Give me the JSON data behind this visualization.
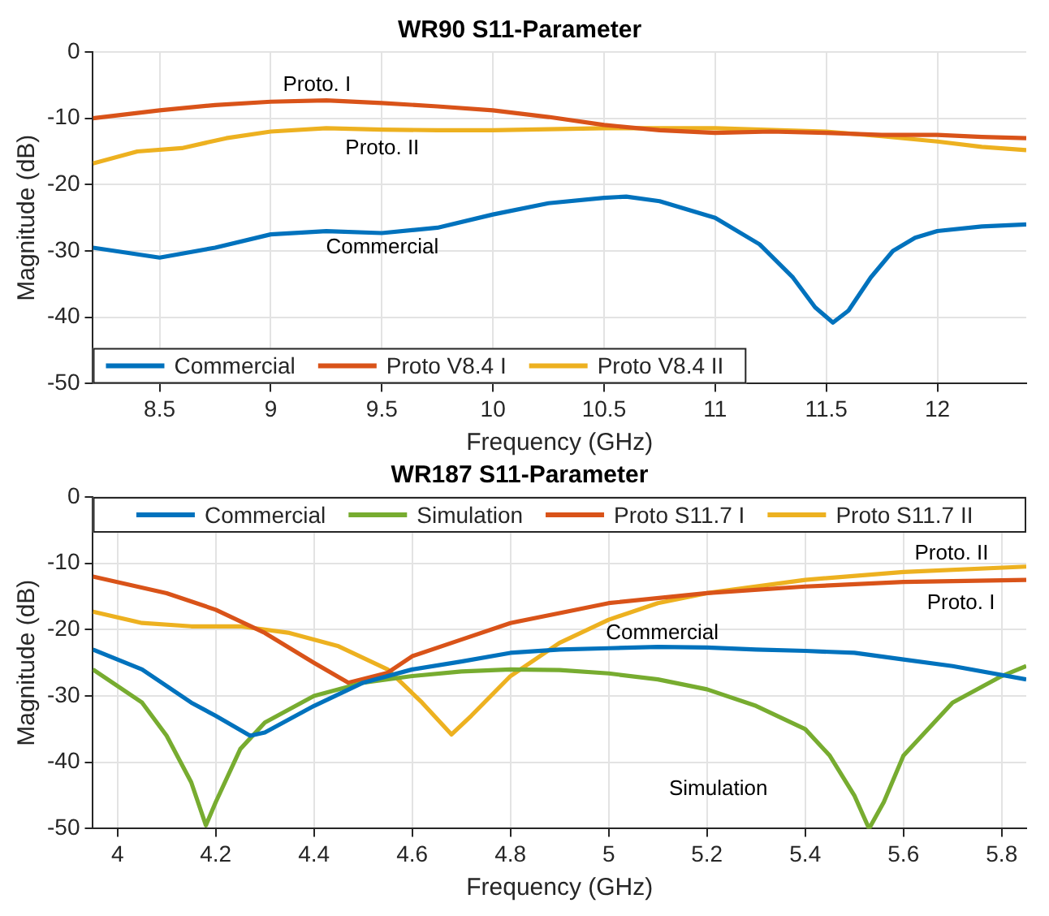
{
  "chart_data": [
    {
      "type": "line",
      "title": "WR90 S11-Parameter",
      "xlabel": "Frequency (GHz)",
      "ylabel": "Magnitude (dB)",
      "xlim": [
        8.2,
        12.4
      ],
      "xticks": [
        8.5,
        9,
        9.5,
        10,
        10.5,
        11,
        11.5,
        12
      ],
      "ylim": [
        -50,
        0
      ],
      "yticks": [
        -50,
        -40,
        -30,
        -20,
        -10,
        0
      ],
      "grid": true,
      "legend": "bottom left",
      "marker": "none",
      "line_style": "solid",
      "series": [
        {
          "name": "Commercial",
          "color": "#0072bd",
          "x": [
            8.2,
            8.5,
            8.75,
            9,
            9.25,
            9.5,
            9.75,
            10,
            10.25,
            10.5,
            10.6,
            10.75,
            11,
            11.2,
            11.35,
            11.45,
            11.53,
            11.6,
            11.7,
            11.8,
            11.9,
            12,
            12.2,
            12.4
          ],
          "values": [
            -29.5,
            -31,
            -29.5,
            -27.5,
            -27,
            -27.3,
            -26.5,
            -24.5,
            -22.8,
            -22,
            -21.8,
            -22.5,
            -25,
            -29,
            -34,
            -38.5,
            -40.8,
            -39,
            -34,
            -30,
            -28,
            -27,
            -26.3,
            -26
          ]
        },
        {
          "name": "Proto V8.4 I",
          "color": "#d95319",
          "x": [
            8.2,
            8.5,
            8.75,
            9,
            9.25,
            9.5,
            9.75,
            10,
            10.25,
            10.5,
            10.75,
            11,
            11.25,
            11.5,
            11.75,
            12,
            12.2,
            12.4
          ],
          "values": [
            -10,
            -8.8,
            -8,
            -7.5,
            -7.3,
            -7.7,
            -8.2,
            -8.8,
            -9.8,
            -11,
            -11.8,
            -12.2,
            -12,
            -12.2,
            -12.5,
            -12.5,
            -12.8,
            -13
          ]
        },
        {
          "name": "Proto V8.4 II",
          "color": "#edb120",
          "x": [
            8.2,
            8.4,
            8.6,
            8.8,
            9,
            9.25,
            9.5,
            9.75,
            10,
            10.5,
            10.75,
            11,
            11.5,
            11.75,
            12,
            12.2,
            12.4
          ],
          "values": [
            -16.8,
            -15,
            -14.5,
            -13,
            -12,
            -11.5,
            -11.7,
            -11.8,
            -11.8,
            -11.5,
            -11.5,
            -11.5,
            -12,
            -12.7,
            -13.5,
            -14.3,
            -14.8
          ]
        }
      ],
      "annotations": [
        "Proto. I",
        "Proto. II",
        "Commercial"
      ]
    },
    {
      "type": "line",
      "title": "WR187 S11-Parameter",
      "xlabel": "Frequency (GHz)",
      "ylabel": "Magnitude (dB)",
      "xlim": [
        3.95,
        5.85
      ],
      "xticks": [
        4,
        4.2,
        4.4,
        4.6,
        4.8,
        5,
        5.2,
        5.4,
        5.6,
        5.8
      ],
      "ylim": [
        -50,
        0
      ],
      "yticks": [
        -50,
        -40,
        -30,
        -20,
        -10,
        0
      ],
      "grid": true,
      "legend": "top",
      "marker": "none",
      "line_style": "solid",
      "series": [
        {
          "name": "Commercial",
          "color": "#0072bd",
          "x": [
            3.95,
            4.05,
            4.15,
            4.2,
            4.27,
            4.3,
            4.4,
            4.5,
            4.6,
            4.7,
            4.8,
            4.9,
            5,
            5.1,
            5.2,
            5.3,
            5.4,
            5.5,
            5.6,
            5.7,
            5.85
          ],
          "values": [
            -23,
            -26,
            -31,
            -33,
            -36,
            -35.5,
            -31.5,
            -28,
            -26,
            -24.8,
            -23.5,
            -23,
            -22.8,
            -22.6,
            -22.7,
            -23,
            -23.2,
            -23.5,
            -24.5,
            -25.5,
            -27.5
          ]
        },
        {
          "name": "Simulation",
          "color": "#77ac30",
          "x": [
            3.95,
            4.05,
            4.1,
            4.15,
            4.18,
            4.2,
            4.25,
            4.3,
            4.4,
            4.5,
            4.6,
            4.7,
            4.8,
            4.9,
            5,
            5.1,
            5.2,
            5.3,
            5.4,
            5.45,
            5.5,
            5.53,
            5.56,
            5.6,
            5.7,
            5.8,
            5.85
          ],
          "values": [
            -26,
            -31,
            -36,
            -43,
            -49.5,
            -46,
            -38,
            -34,
            -30,
            -28,
            -27,
            -26.3,
            -26,
            -26.1,
            -26.6,
            -27.5,
            -29,
            -31.5,
            -35,
            -39,
            -45,
            -50,
            -46,
            -39,
            -31,
            -27,
            -25.5
          ]
        },
        {
          "name": "Proto S11.7 I",
          "color": "#d95319",
          "x": [
            3.95,
            4.1,
            4.2,
            4.3,
            4.4,
            4.47,
            4.55,
            4.6,
            4.7,
            4.8,
            4.9,
            5,
            5.2,
            5.4,
            5.6,
            5.85
          ],
          "values": [
            -12,
            -14.5,
            -17,
            -20.5,
            -25,
            -28,
            -26.5,
            -24,
            -21.5,
            -19,
            -17.5,
            -16,
            -14.5,
            -13.5,
            -12.8,
            -12.5
          ]
        },
        {
          "name": "Proto S11.7 II",
          "color": "#edb120",
          "x": [
            3.95,
            4.05,
            4.15,
            4.25,
            4.35,
            4.45,
            4.55,
            4.62,
            4.68,
            4.72,
            4.8,
            4.9,
            5,
            5.1,
            5.2,
            5.4,
            5.6,
            5.85
          ],
          "values": [
            -17.3,
            -19,
            -19.5,
            -19.5,
            -20.5,
            -22.5,
            -26,
            -31,
            -35.8,
            -33,
            -27,
            -22,
            -18.5,
            -16,
            -14.5,
            -12.5,
            -11.3,
            -10.5
          ]
        }
      ],
      "annotations": [
        "Proto. II",
        "Proto. I",
        "Commercial",
        "Simulation"
      ]
    }
  ]
}
